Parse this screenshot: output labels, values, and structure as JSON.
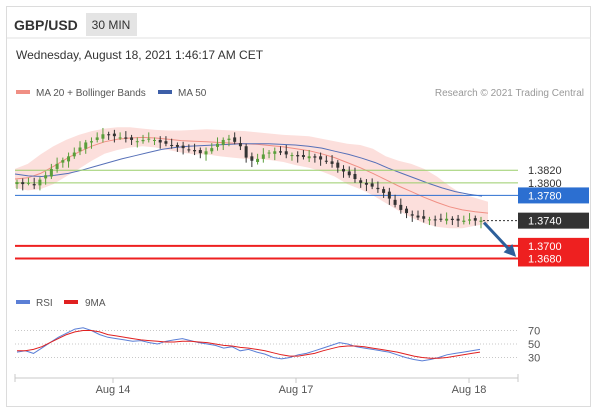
{
  "header": {
    "symbol": "GBP/USD",
    "timeframe": "30 MIN",
    "datetime": "Wednesday, August 18, 2021 1:46:17 AM CET"
  },
  "legend": {
    "items": [
      {
        "label": "MA 20 + Bollinger Bands",
        "color": "#f08f84"
      },
      {
        "label": "MA 50",
        "color": "#3d5fa8"
      }
    ],
    "credit": "Research © 2021 Trading Central"
  },
  "colors": {
    "up_candle": "#5a9e3a",
    "down_candle": "#333333",
    "bollinger_fill": "#fbd9d6",
    "ma20": "#f08f84",
    "ma50": "#5670b8",
    "resistance": "#9acd6a",
    "pivot": "#2c6fd1",
    "support": "#ee2020",
    "arrow": "#2d5f9a",
    "rsi": "#5b7fd6",
    "rsi_ma": "#e02020"
  },
  "chart_data": [
    {
      "type": "candlestick",
      "ylim": [
        1.363,
        1.3925
      ],
      "x_ticks": [
        "Aug 14",
        "Aug 17",
        "Aug 18"
      ],
      "levels": [
        {
          "label": "1.3820",
          "value": 1.382,
          "kind": "resistance"
        },
        {
          "label": "1.3800",
          "value": 1.38,
          "kind": "resistance"
        },
        {
          "label": "1.3780",
          "value": 1.378,
          "kind": "pivot"
        },
        {
          "label": "1.3700",
          "value": 1.37,
          "kind": "support"
        },
        {
          "label": "1.3680",
          "value": 1.368,
          "kind": "support"
        }
      ],
      "last_price": {
        "label": "1.3740",
        "value": 1.374
      },
      "forecast_target": 1.368,
      "close": [
        1.3801,
        1.3798,
        1.38,
        1.3796,
        1.3805,
        1.3812,
        1.3822,
        1.383,
        1.3836,
        1.3842,
        1.3848,
        1.3856,
        1.3864,
        1.3866,
        1.3872,
        1.3877,
        1.3876,
        1.3874,
        1.3872,
        1.387,
        1.3868,
        1.3866,
        1.3868,
        1.387,
        1.3868,
        1.3864,
        1.3862,
        1.386,
        1.3857,
        1.3855,
        1.3852,
        1.385,
        1.3847,
        1.385,
        1.3855,
        1.3862,
        1.3868,
        1.387,
        1.3865,
        1.3858,
        1.384,
        1.3835,
        1.3838,
        1.3845,
        1.3848,
        1.385,
        1.3848,
        1.3845,
        1.3844,
        1.3842,
        1.3841,
        1.3842,
        1.384,
        1.3837,
        1.3834,
        1.383,
        1.3824,
        1.3818,
        1.3812,
        1.3806,
        1.38,
        1.3797,
        1.3794,
        1.379,
        1.3784,
        1.3775,
        1.3765,
        1.3757,
        1.3752,
        1.3748,
        1.3745,
        1.3743,
        1.3742,
        1.3741,
        1.3742,
        1.3743,
        1.3741,
        1.374,
        1.374,
        1.3742,
        1.374,
        1.374
      ],
      "bollinger": {
        "upper": [
          1.3822,
          1.383,
          1.3845,
          1.3858,
          1.3868,
          1.3876,
          1.3882,
          1.3886,
          1.3888,
          1.3888,
          1.3886,
          1.3884,
          1.3883,
          1.3883,
          1.3884,
          1.3885,
          1.3884,
          1.3883,
          1.3882,
          1.388,
          1.3878,
          1.3876,
          1.3875,
          1.3874,
          1.387,
          1.3866,
          1.3862,
          1.386,
          1.3854,
          1.3842,
          1.3835,
          1.383,
          1.3822,
          1.381,
          1.3795,
          1.3782,
          1.3776,
          1.377
        ],
        "lower": [
          1.3792,
          1.3788,
          1.379,
          1.3798,
          1.381,
          1.3822,
          1.3835,
          1.3846,
          1.3852,
          1.3856,
          1.3858,
          1.3856,
          1.3852,
          1.3848,
          1.3845,
          1.3845,
          1.3842,
          1.384,
          1.3838,
          1.3838,
          1.3836,
          1.3833,
          1.3828,
          1.3824,
          1.3818,
          1.381,
          1.3798,
          1.379,
          1.378,
          1.3768,
          1.3756,
          1.3745,
          1.3736,
          1.373,
          1.3728,
          1.3728,
          1.3732,
          1.3735
        ]
      },
      "ma20": [
        1.3806,
        1.3808,
        1.3815,
        1.3826,
        1.3838,
        1.3849,
        1.3858,
        1.3865,
        1.3869,
        1.3871,
        1.3872,
        1.3871,
        1.3869,
        1.3867,
        1.3866,
        1.3865,
        1.3864,
        1.3863,
        1.3862,
        1.3861,
        1.3859,
        1.3857,
        1.3854,
        1.3851,
        1.3846,
        1.384,
        1.3832,
        1.3824,
        1.3815,
        1.3805,
        1.3795,
        1.3786,
        1.3777,
        1.3769,
        1.3762,
        1.3757,
        1.3754,
        1.3752
      ],
      "ma50": [
        1.3814,
        1.3811,
        1.381,
        1.3812,
        1.3815,
        1.382,
        1.3826,
        1.3832,
        1.3838,
        1.3843,
        1.3848,
        1.3853,
        1.3856,
        1.3858,
        1.3859,
        1.386,
        1.3861,
        1.3862,
        1.3862,
        1.3862,
        1.3861,
        1.386,
        1.3858,
        1.3855,
        1.385,
        1.3845,
        1.3839,
        1.3832,
        1.3823,
        1.3815,
        1.3807,
        1.3799,
        1.3792,
        1.3786,
        1.3782,
        1.3779
      ]
    },
    {
      "type": "line",
      "ylim": [
        10,
        90
      ],
      "y_ticks": [
        70,
        50,
        30
      ],
      "series": [
        {
          "name": "RSI",
          "values": [
            38,
            40,
            36,
            44,
            52,
            60,
            66,
            72,
            74,
            70,
            64,
            60,
            58,
            56,
            54,
            55,
            52,
            50,
            54,
            56,
            58,
            55,
            52,
            50,
            48,
            44,
            46,
            40,
            42,
            38,
            35,
            30,
            28,
            30,
            34,
            36,
            40,
            44,
            48,
            52,
            50,
            46,
            44,
            42,
            40,
            38,
            34,
            30,
            27,
            25,
            27,
            30,
            34,
            36,
            38,
            40,
            42
          ]
        },
        {
          "name": "9MA",
          "values": [
            40,
            40,
            42,
            46,
            52,
            58,
            64,
            68,
            70,
            70,
            68,
            64,
            62,
            60,
            58,
            56,
            55,
            54,
            53,
            53,
            54,
            54,
            53,
            52,
            50,
            48,
            47,
            45,
            44,
            42,
            40,
            37,
            34,
            32,
            32,
            34,
            36,
            40,
            43,
            46,
            47,
            47,
            46,
            44,
            42,
            40,
            38,
            35,
            32,
            30,
            29,
            29,
            30,
            32,
            34,
            36,
            38
          ]
        }
      ]
    }
  ]
}
